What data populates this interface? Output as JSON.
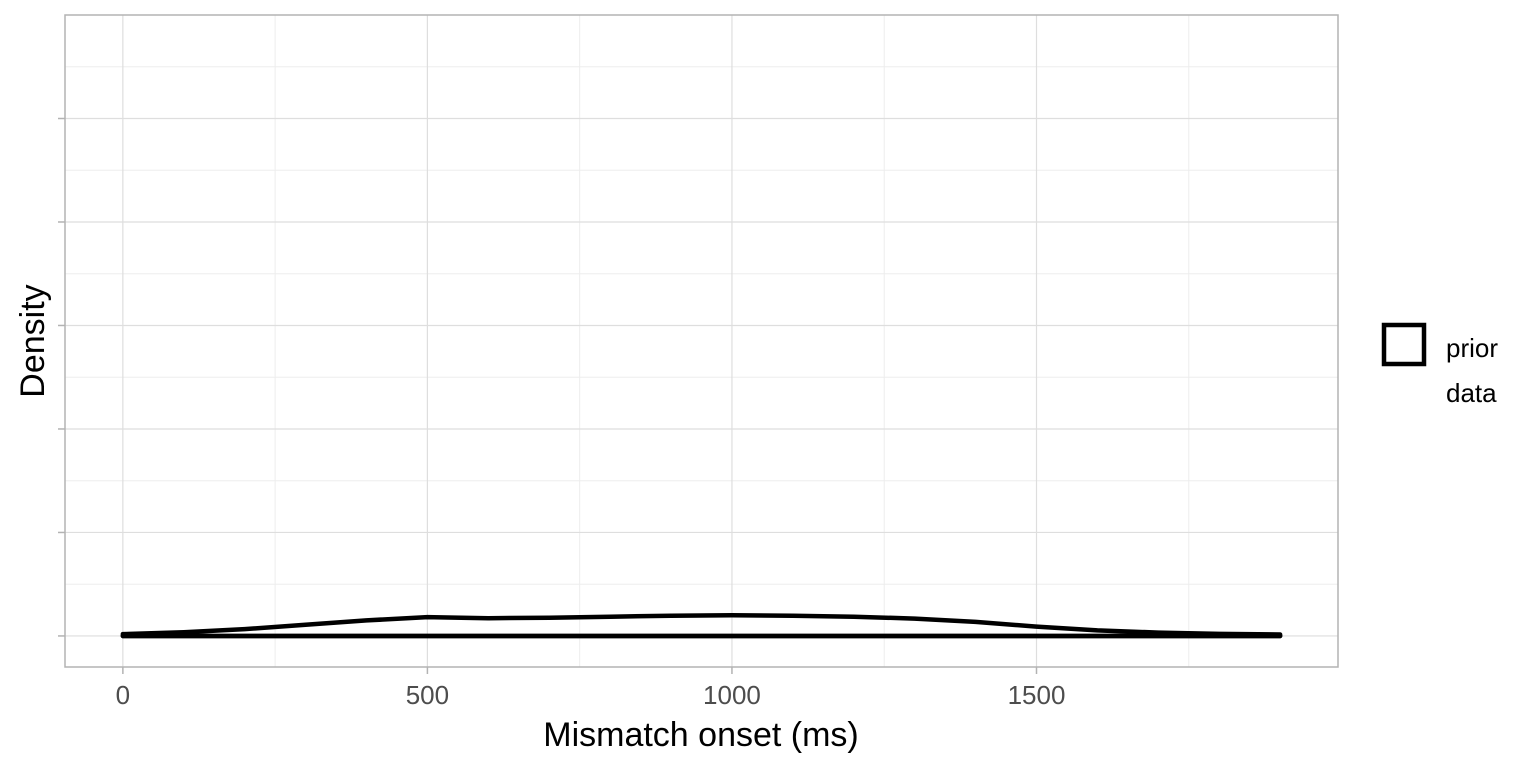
{
  "chart_data": {
    "type": "area",
    "xlabel": "Mismatch onset (ms)",
    "ylabel": "Density",
    "xlim": [
      -95,
      1995
    ],
    "ylim": [
      -0.00015,
      0.003
    ],
    "x_ticks": [
      0,
      500,
      1000,
      1500
    ],
    "x_tick_labels": [
      "0",
      "500",
      "1000",
      "1500"
    ],
    "y_ticks": [
      0,
      0.0005,
      0.001,
      0.0015,
      0.002,
      0.0025
    ],
    "y_tick_labels_shown": false,
    "grid": true,
    "legend_position": "right",
    "series": [
      {
        "name": "prior",
        "x": [
          0,
          100,
          200,
          300,
          400,
          500,
          600,
          700,
          800,
          900,
          1000,
          1100,
          1200,
          1300,
          1400,
          1500,
          1600,
          1700,
          1800,
          1900
        ],
        "values": [
          9e-06,
          1.8e-05,
          3.3e-05,
          5.4e-05,
          7.5e-05,
          9.1e-05,
          8.6e-05,
          8.8e-05,
          9.3e-05,
          9.8e-05,
          0.0001,
          9.8e-05,
          9.3e-05,
          8.4e-05,
          6.8e-05,
          4.5e-05,
          2.7e-05,
          1.6e-05,
          1e-05,
          7e-06
        ]
      },
      {
        "name": "data",
        "x": [
          0,
          1900
        ],
        "values": [
          0,
          0
        ]
      }
    ]
  },
  "legend": {
    "items": [
      "prior",
      "data"
    ]
  },
  "colors": {
    "line": "#000000",
    "grid_major": "#dedede",
    "grid_minor": "#ededed",
    "panel_border": "#b3b3b3",
    "tick_text": "#4d4d4d"
  }
}
